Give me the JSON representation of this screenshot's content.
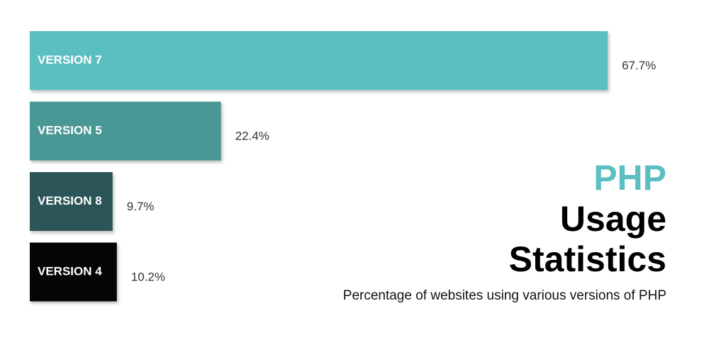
{
  "chart_data": {
    "type": "bar",
    "orientation": "horizontal",
    "title_lines": [
      "PHP",
      "Usage",
      "Statistics"
    ],
    "subtitle": "Percentage of websites using various versions of PHP",
    "categories": [
      "VERSION 7",
      "VERSION 5",
      "VERSION 8",
      "VERSION 4"
    ],
    "values": [
      67.7,
      22.4,
      9.7,
      10.2
    ],
    "value_labels": [
      "67.7%",
      "22.4%",
      "9.7%",
      "10.2%"
    ],
    "colors": [
      "#5bbfc1",
      "#4a9896",
      "#2c5557",
      "#050505"
    ]
  }
}
